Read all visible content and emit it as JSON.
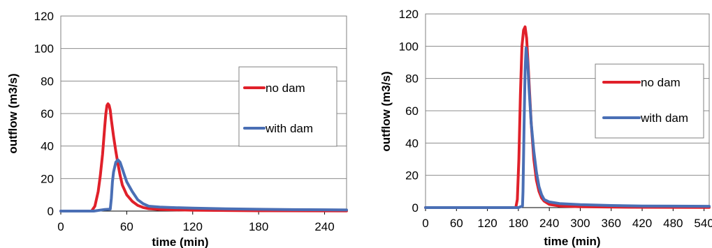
{
  "chart_data": [
    {
      "type": "line",
      "xlabel": "time (min)",
      "ylabel": "outflow (m3/s)",
      "xlim": [
        0,
        260
      ],
      "ylim": [
        0,
        120
      ],
      "xticks": [
        0,
        60,
        120,
        180,
        240
      ],
      "yticks": [
        0,
        20,
        40,
        60,
        80,
        100,
        120
      ],
      "grid": "horizontal",
      "legend": "right",
      "series": [
        {
          "name": "no dam",
          "color": "#e0202a",
          "x": [
            0,
            28,
            31,
            34,
            36,
            38,
            40,
            41,
            42,
            43,
            44,
            45,
            46,
            48,
            50,
            52,
            54,
            56,
            60,
            65,
            70,
            75,
            80,
            90,
            120,
            180,
            260
          ],
          "y": [
            0,
            0,
            3,
            12,
            22,
            35,
            52,
            60,
            65,
            66,
            65,
            62,
            56,
            46,
            37,
            29,
            22,
            16,
            10,
            6,
            3.5,
            2.2,
            1.5,
            1,
            0.5,
            0.2,
            0.1
          ]
        },
        {
          "name": "with dam",
          "color": "#4a6fb5",
          "x": [
            0,
            30,
            40,
            45,
            46,
            47,
            48,
            50,
            52,
            54,
            56,
            58,
            60,
            65,
            70,
            75,
            80,
            90,
            100,
            120,
            150,
            180,
            210,
            240,
            260
          ],
          "y": [
            0,
            0,
            1,
            1.2,
            8,
            18,
            24,
            30,
            31.5,
            30,
            26,
            22,
            18,
            12,
            7,
            4.5,
            3,
            2.5,
            2.2,
            1.8,
            1.4,
            1.1,
            0.9,
            0.8,
            0.7
          ]
        }
      ]
    },
    {
      "type": "line",
      "xlabel": "time (min)",
      "ylabel": "outflow (m3/s)",
      "xlim": [
        0,
        550
      ],
      "ylim": [
        0,
        120
      ],
      "xticks": [
        0,
        60,
        120,
        180,
        240,
        300,
        360,
        420,
        480,
        540
      ],
      "yticks": [
        0,
        20,
        40,
        60,
        80,
        100,
        120
      ],
      "grid": "horizontal",
      "legend": "right",
      "series": [
        {
          "name": "no dam",
          "color": "#e0202a",
          "x": [
            0,
            175,
            178,
            181,
            184,
            187,
            190,
            193,
            196,
            199,
            202,
            205,
            210,
            215,
            220,
            225,
            230,
            240,
            260,
            300,
            400,
            550
          ],
          "y": [
            0,
            0,
            5,
            30,
            70,
            100,
            110,
            112,
            105,
            88,
            70,
            52,
            30,
            17,
            10,
            6,
            4,
            2,
            1,
            0.5,
            0.2,
            0.1
          ]
        },
        {
          "name": "with dam",
          "color": "#4a6fb5",
          "x": [
            0,
            180,
            188,
            189,
            191,
            193,
            195,
            198,
            201,
            205,
            210,
            215,
            220,
            225,
            230,
            240,
            260,
            300,
            360,
            420,
            480,
            550
          ],
          "y": [
            0,
            0,
            1,
            10,
            50,
            85,
            99,
            90,
            72,
            52,
            35,
            22,
            13,
            8,
            5,
            3.5,
            2.5,
            1.8,
            1.3,
            1,
            0.9,
            0.8
          ]
        }
      ]
    }
  ]
}
